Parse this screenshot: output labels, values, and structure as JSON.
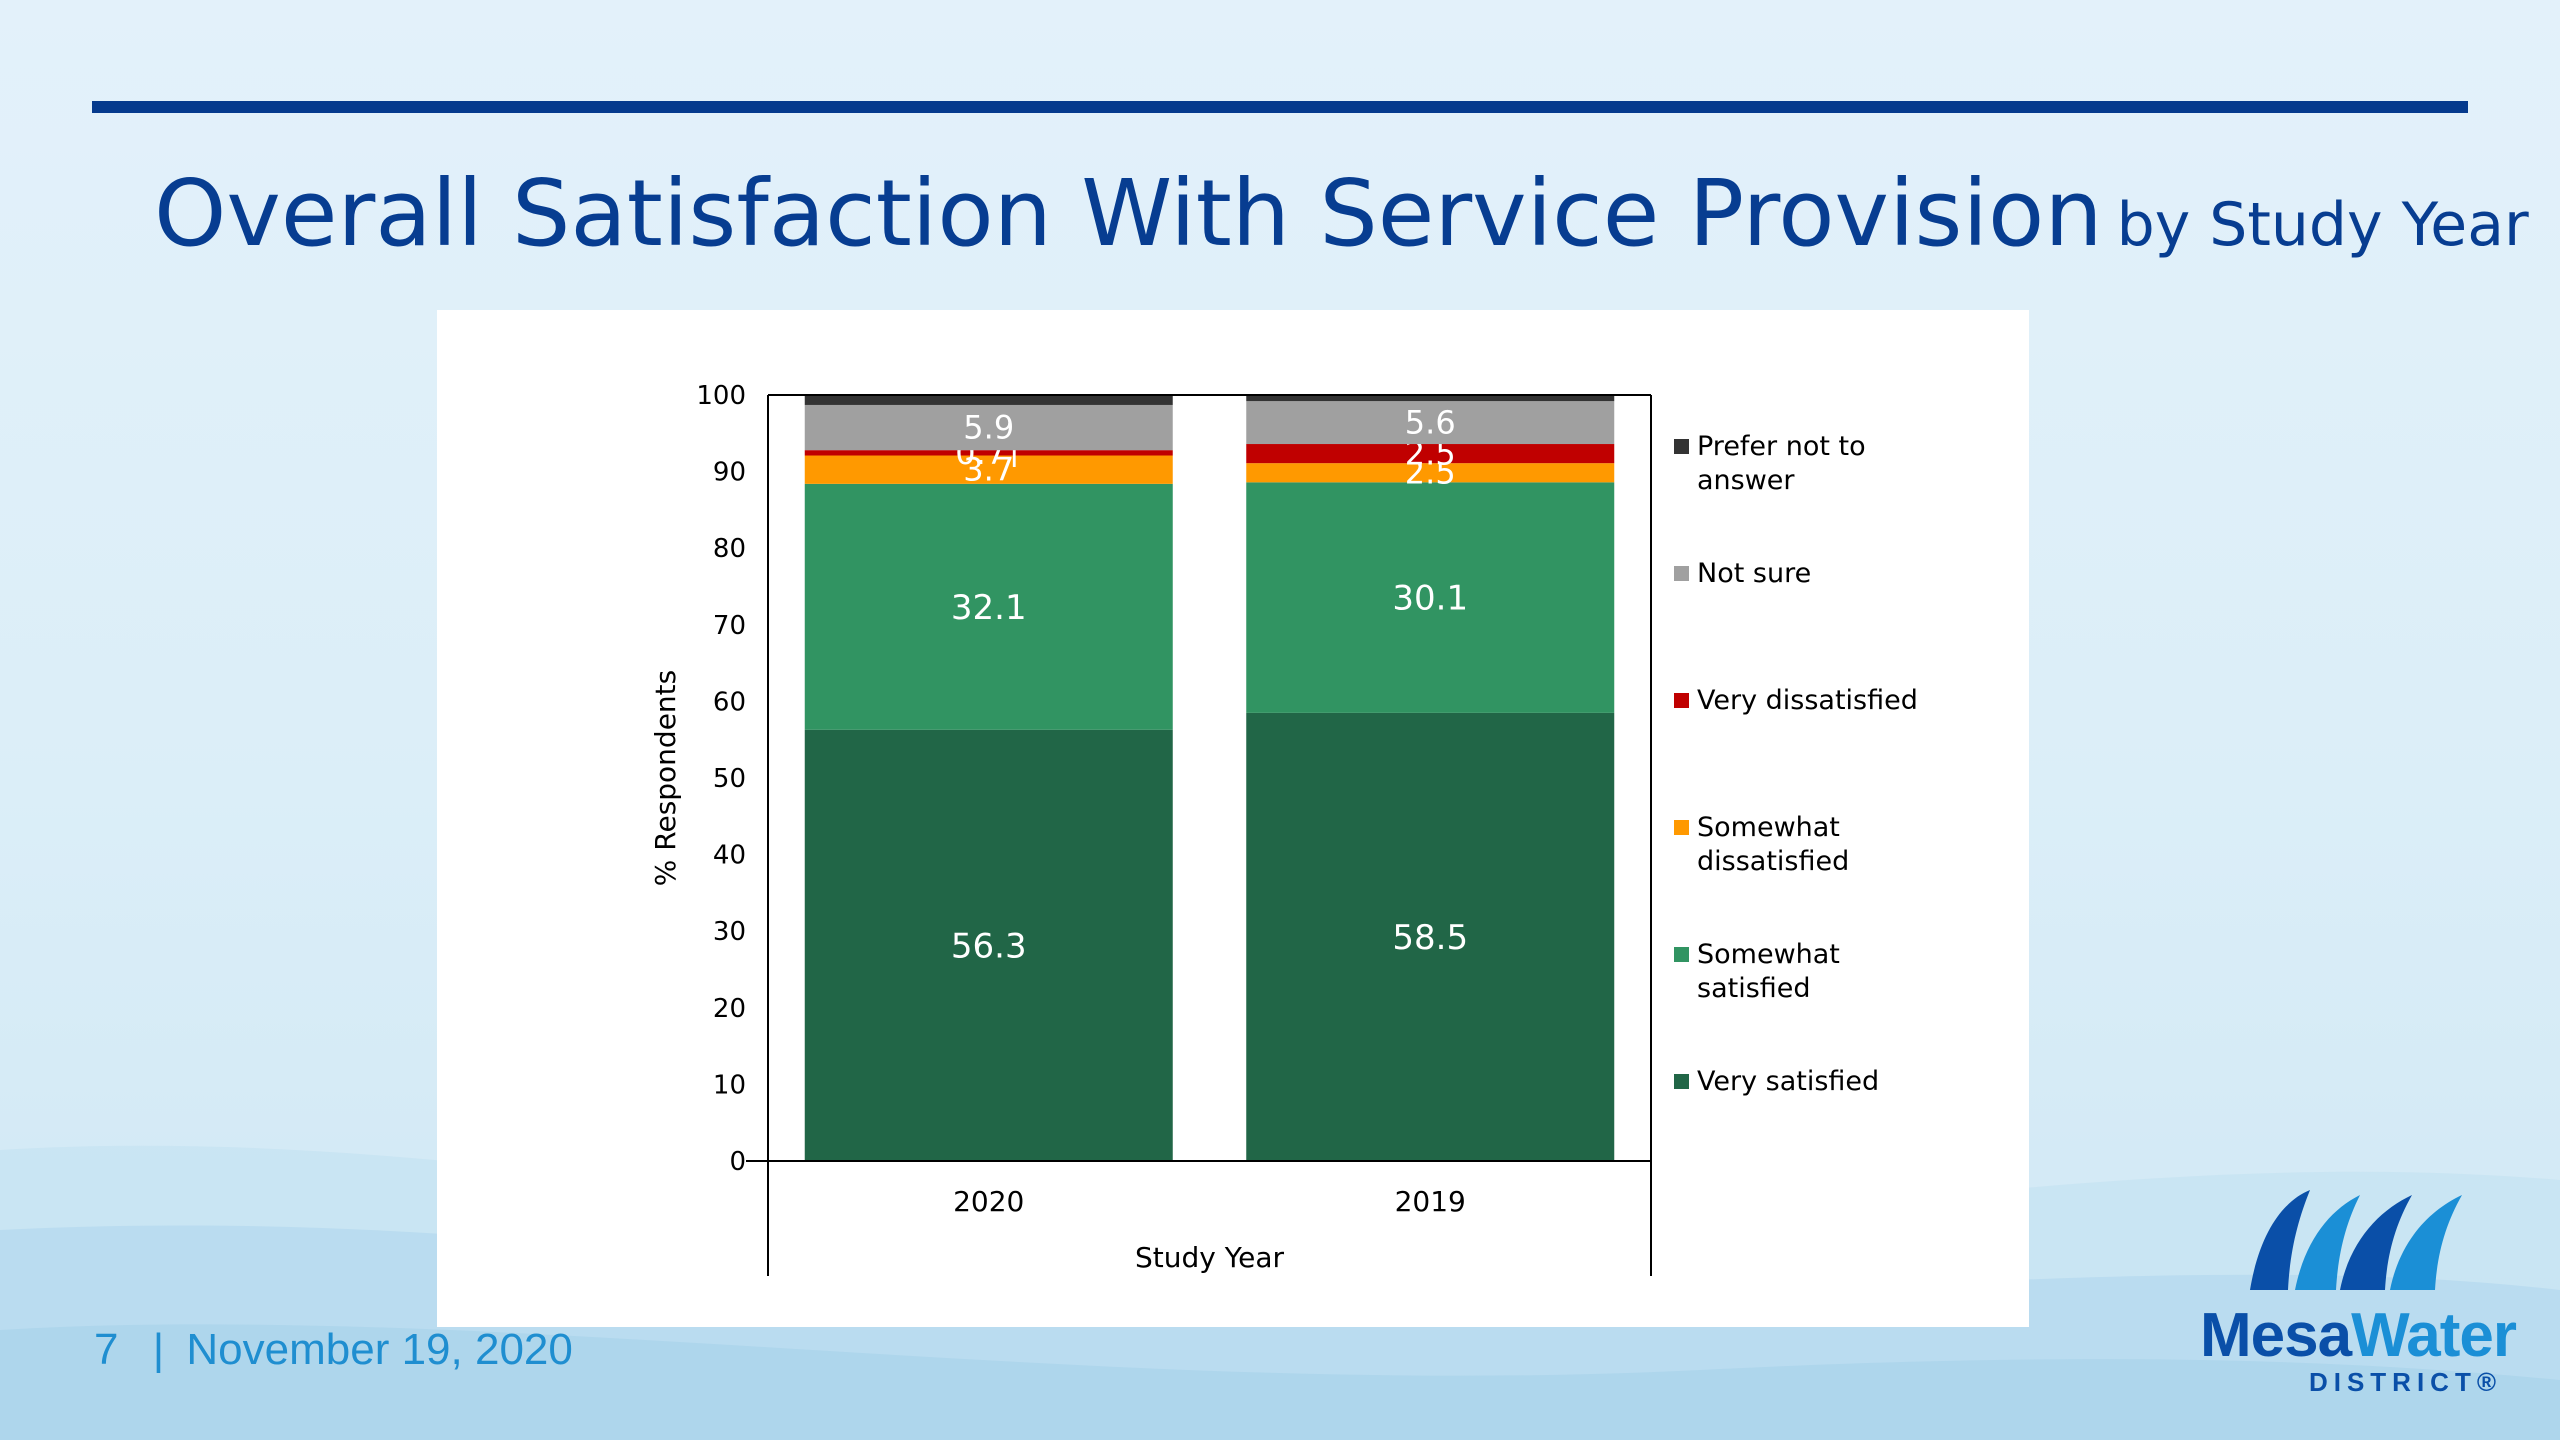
{
  "slide": {
    "title_main": "Overall Satisfaction With Service Provision",
    "title_sub": "by Study Year",
    "page_number": "7",
    "separator": "|",
    "date": "November 19, 2020",
    "logo_word1": "Mesa",
    "logo_word2": "Water",
    "logo_sub": "DISTRICT®"
  },
  "colors": {
    "title": "#073d91",
    "rule": "#053a8d",
    "footer": "#1f8ed0",
    "very_satisfied": "#216647",
    "somewhat_satisfied": "#319462",
    "somewhat_dissatisfied": "#ff9900",
    "very_dissatisfied": "#c00000",
    "not_sure": "#a0a0a0",
    "prefer_not": "#333333"
  },
  "chart_data": {
    "type": "bar",
    "stacked": true,
    "categories": [
      "2020",
      "2019"
    ],
    "xlabel": "Study Year",
    "ylabel": "% Respondents",
    "ylim": [
      0,
      100
    ],
    "yticks": [
      "0",
      "10",
      "20",
      "30",
      "40",
      "50",
      "60",
      "70",
      "80",
      "90",
      "100"
    ],
    "legend_position": "right",
    "series": [
      {
        "name": "Very satisfied",
        "values": [
          56.3,
          58.5
        ],
        "labels": [
          "56.3",
          "58.5"
        ],
        "color": "#216647"
      },
      {
        "name": "Somewhat satisfied",
        "values": [
          32.1,
          30.1
        ],
        "labels": [
          "32.1",
          "30.1"
        ],
        "color": "#319462"
      },
      {
        "name": "Somewhat dissatisfied",
        "values": [
          3.7,
          2.5
        ],
        "labels": [
          "3.7",
          "2.5"
        ],
        "color": "#ff9900"
      },
      {
        "name": "Very dissatisfied",
        "values": [
          0.7,
          2.5
        ],
        "labels": [
          "0.7†",
          "2.5"
        ],
        "color": "#c00000"
      },
      {
        "name": "Not sure",
        "values": [
          5.9,
          5.6
        ],
        "labels": [
          "5.9",
          "5.6"
        ],
        "color": "#a0a0a0"
      },
      {
        "name": "Prefer not to answer",
        "values": [
          1.3,
          0.8
        ],
        "labels": [
          "",
          ""
        ],
        "color": "#333333"
      }
    ],
    "legend": [
      {
        "lines": [
          "Prefer not to",
          "answer"
        ],
        "color": "#333333"
      },
      {
        "lines": [
          "Not sure"
        ],
        "color": "#a0a0a0"
      },
      {
        "lines": [
          "Very dissatisfied"
        ],
        "color": "#c00000"
      },
      {
        "lines": [
          "Somewhat",
          "dissatisfied"
        ],
        "color": "#ff9900"
      },
      {
        "lines": [
          "Somewhat",
          "satisfied"
        ],
        "color": "#319462"
      },
      {
        "lines": [
          "Very satisfied"
        ],
        "color": "#216647"
      }
    ]
  }
}
